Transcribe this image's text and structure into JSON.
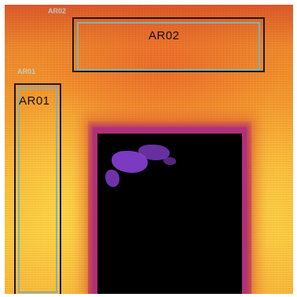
{
  "regions": [
    {
      "label": "AR01",
      "tag": "AR01"
    },
    {
      "label": "AR02",
      "tag": "AR02"
    }
  ],
  "colors": {
    "roi_outer": "#1a1a1a",
    "roi_inner": "#7fb3b0",
    "hot": "#f8c23c",
    "warm": "#e57a2c",
    "cold_rim": "#b0307a",
    "cold": "#000000",
    "cool_patch": "#8a3fd6"
  }
}
